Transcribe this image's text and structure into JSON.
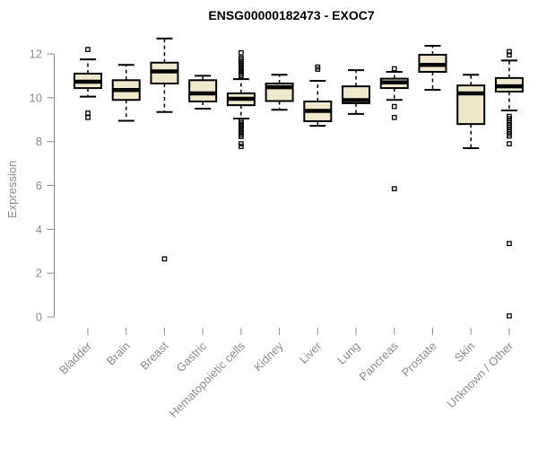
{
  "chart_data": {
    "type": "boxplot",
    "title": "ENSG00000182473 - EXOC7",
    "ylabel": "Expression",
    "xlabel": "",
    "yticks": [
      0,
      2,
      4,
      6,
      8,
      10,
      12
    ],
    "ylim": [
      -0.5,
      12.75
    ],
    "grid": false,
    "legend": "none",
    "colors": {
      "box_fill": "#EFE8CD",
      "box_stroke": "#000000",
      "axis": "#8b8b8b",
      "title": "#000000",
      "background": "#ffffff"
    },
    "categories": [
      "Bladder",
      "Brain",
      "Breast",
      "Gastric",
      "Hematopoietic cells",
      "Kidney",
      "Liver",
      "Lung",
      "Pancreas",
      "Prostate",
      "Skin",
      "Unknown / Other"
    ],
    "boxes": [
      {
        "name": "Bladder",
        "whislo": 10.05,
        "q1": 10.44,
        "med": 10.73,
        "q3": 11.1,
        "whishi": 11.75,
        "outliers": [
          12.2,
          9.3,
          9.1
        ]
      },
      {
        "name": "Brain",
        "whislo": 8.95,
        "q1": 9.9,
        "med": 10.35,
        "q3": 10.8,
        "whishi": 11.5,
        "outliers": []
      },
      {
        "name": "Breast",
        "whislo": 9.35,
        "q1": 10.65,
        "med": 11.2,
        "q3": 11.6,
        "whishi": 12.7,
        "outliers": [
          2.65
        ]
      },
      {
        "name": "Gastric",
        "whislo": 9.5,
        "q1": 9.83,
        "med": 10.2,
        "q3": 10.8,
        "whishi": 11.0,
        "outliers": []
      },
      {
        "name": "Hematopoietic cells",
        "whislo": 9.05,
        "q1": 9.66,
        "med": 9.95,
        "q3": 10.2,
        "whishi": 10.85,
        "outliers": [
          12.05,
          11.8,
          11.72,
          11.64,
          11.56,
          11.48,
          11.4,
          11.32,
          11.24,
          11.16,
          11.08,
          11.0,
          8.95,
          8.87,
          8.79,
          8.71,
          8.63,
          8.55,
          8.47,
          8.39,
          8.31,
          8.23,
          7.9,
          7.78
        ]
      },
      {
        "name": "Kidney",
        "whislo": 9.45,
        "q1": 9.85,
        "med": 10.48,
        "q3": 10.65,
        "whishi": 11.05,
        "outliers": []
      },
      {
        "name": "Liver",
        "whislo": 8.72,
        "q1": 8.93,
        "med": 9.4,
        "q3": 9.83,
        "whishi": 10.77,
        "outliers": [
          11.4,
          11.3
        ]
      },
      {
        "name": "Lung",
        "whislo": 9.26,
        "q1": 9.75,
        "med": 9.89,
        "q3": 10.52,
        "whishi": 11.26,
        "outliers": []
      },
      {
        "name": "Pancreas",
        "whislo": 9.9,
        "q1": 10.44,
        "med": 10.7,
        "q3": 10.87,
        "whishi": 11.18,
        "outliers": [
          11.32,
          9.6,
          9.1,
          5.85
        ]
      },
      {
        "name": "Prostate",
        "whislo": 10.36,
        "q1": 11.18,
        "med": 11.5,
        "q3": 11.96,
        "whishi": 12.37,
        "outliers": []
      },
      {
        "name": "Skin",
        "whislo": 7.7,
        "q1": 8.8,
        "med": 10.2,
        "q3": 10.56,
        "whishi": 11.05,
        "outliers": []
      },
      {
        "name": "Unknown / Other",
        "whislo": 9.42,
        "q1": 10.28,
        "med": 10.52,
        "q3": 10.9,
        "whishi": 11.7,
        "outliers": [
          12.1,
          11.95,
          9.15,
          9.05,
          8.95,
          8.85,
          8.75,
          8.65,
          8.55,
          8.45,
          8.35,
          8.25,
          7.9,
          3.35,
          0.05
        ]
      }
    ]
  }
}
